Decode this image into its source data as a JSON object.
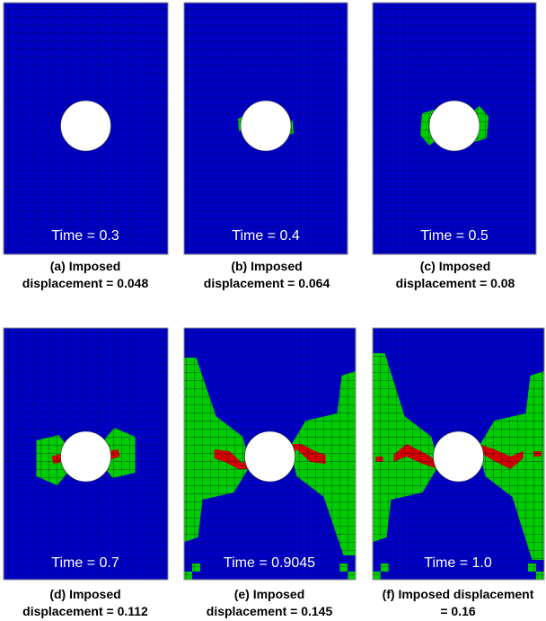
{
  "colors": {
    "undamaged": "#0000c4",
    "partially_damaged": "#00cc00",
    "fully_damaged": "#d40000",
    "mesh_lines": "#000040",
    "hole": "#ffffff"
  },
  "panels": [
    {
      "time_label": "Time = 0.3",
      "caption_line1": "(a) Imposed",
      "caption_line2": "displacement = 0.048"
    },
    {
      "time_label": "Time = 0.4",
      "caption_line1": "(b) Imposed",
      "caption_line2": "displacement = 0.064"
    },
    {
      "time_label": "Time = 0.5",
      "caption_line1": "(c) Imposed",
      "caption_line2": "displacement = 0.08"
    },
    {
      "time_label": "Time = 0.7",
      "caption_line1": "(d) Imposed",
      "caption_line2": "displacement = 0.112"
    },
    {
      "time_label": "Time = 0.9045",
      "caption_line1": "(e) Imposed",
      "caption_line2": "displacement = 0.145"
    },
    {
      "time_label": "Time = 1.0",
      "caption_line1": "(f) Imposed displacement",
      "caption_line2": "= 0.16"
    }
  ]
}
